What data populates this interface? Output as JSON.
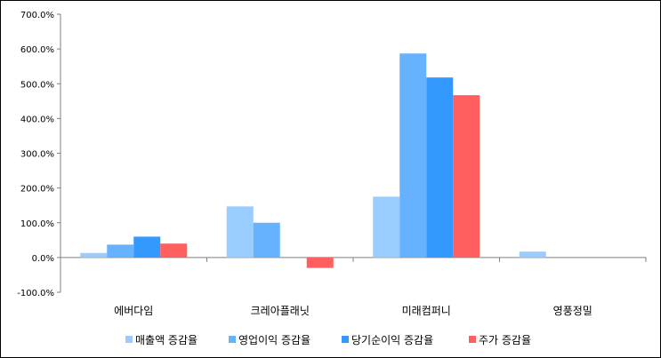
{
  "chart_data": {
    "type": "bar",
    "categories": [
      "에버다임",
      "크레아플래닛",
      "미래컴퍼니",
      "영풍정밀"
    ],
    "series": [
      {
        "name": "매출액 증감율",
        "color": "#99CCFF",
        "values": [
          13,
          147,
          175,
          17
        ]
      },
      {
        "name": "영업이익 증감율",
        "color": "#66B2FF",
        "values": [
          37,
          100,
          587,
          0
        ]
      },
      {
        "name": "당기순이익 증감율",
        "color": "#3399FF",
        "values": [
          60,
          0,
          518,
          0
        ]
      },
      {
        "name": "주가 증감율",
        "color": "#FF5F5F",
        "values": [
          40,
          -30,
          467,
          0
        ]
      }
    ],
    "y_ticks": [
      "-100.0%",
      "0.0%",
      "100.0%",
      "200.0%",
      "300.0%",
      "400.0%",
      "500.0%",
      "600.0%",
      "700.0%"
    ],
    "ylim": [
      -100,
      700
    ],
    "grid": false,
    "legend_position": "bottom"
  }
}
